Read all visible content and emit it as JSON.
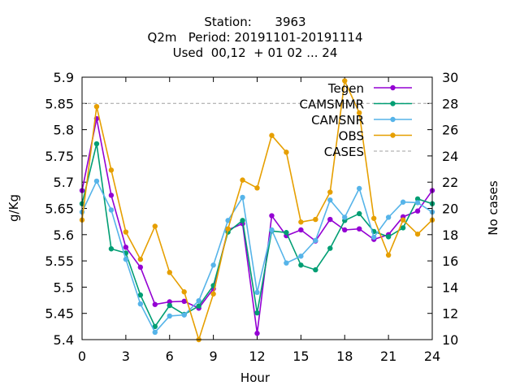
{
  "chart_data": {
    "type": "line",
    "title_lines": [
      "Station:      3963",
      "Q2m   Period: 20191101-20191114",
      "Used  00,12  + 01 02 ... 24"
    ],
    "xlabel": "Hour",
    "ylabel": "g/Kg",
    "y2label": "No cases",
    "xlim": [
      0,
      24
    ],
    "ylim": [
      5.4,
      5.9
    ],
    "y2lim": [
      10,
      30
    ],
    "x_ticks": [
      0,
      3,
      6,
      9,
      12,
      15,
      18,
      21,
      24
    ],
    "y_ticks": [
      "5.4",
      "5.45",
      "5.5",
      "5.55",
      "5.6",
      "5.65",
      "5.7",
      "5.75",
      "5.8",
      "5.85",
      "5.9"
    ],
    "y2_ticks": [
      10,
      12,
      14,
      16,
      18,
      20,
      22,
      24,
      26,
      28,
      30
    ],
    "x": [
      0,
      1,
      2,
      3,
      4,
      5,
      6,
      7,
      8,
      9,
      10,
      11,
      12,
      13,
      14,
      15,
      16,
      17,
      18,
      19,
      20,
      21,
      22,
      23,
      24
    ],
    "series": [
      {
        "name": "Tegen",
        "color": "#9400d3",
        "axis": "y",
        "values": [
          5.684,
          5.821,
          5.675,
          5.576,
          5.538,
          5.467,
          5.472,
          5.473,
          5.46,
          5.497,
          5.609,
          5.621,
          5.412,
          5.636,
          5.598,
          5.609,
          5.588,
          5.629,
          5.609,
          5.611,
          5.591,
          5.6,
          5.634,
          5.645,
          5.684
        ]
      },
      {
        "name": "CAMSMMR",
        "color": "#009e73",
        "axis": "y",
        "values": [
          5.659,
          5.773,
          5.573,
          5.565,
          5.485,
          5.425,
          5.465,
          5.448,
          5.464,
          5.503,
          5.605,
          5.627,
          5.451,
          5.607,
          5.604,
          5.542,
          5.533,
          5.574,
          5.627,
          5.64,
          5.606,
          5.596,
          5.613,
          5.668,
          5.659
        ]
      },
      {
        "name": "CAMSNR",
        "color": "#56b4e9",
        "axis": "y",
        "values": [
          5.643,
          5.702,
          5.647,
          5.553,
          5.468,
          5.414,
          5.445,
          5.447,
          5.474,
          5.542,
          5.627,
          5.671,
          5.49,
          5.609,
          5.546,
          5.559,
          5.589,
          5.666,
          5.633,
          5.688,
          5.595,
          5.633,
          5.662,
          5.661,
          5.643
        ]
      },
      {
        "name": "OBS",
        "color": "#e69f00",
        "axis": "y",
        "values": [
          5.628,
          5.844,
          5.723,
          5.605,
          5.553,
          5.616,
          5.528,
          5.491,
          5.4,
          5.487,
          5.611,
          5.704,
          5.689,
          5.789,
          5.757,
          5.624,
          5.629,
          5.681,
          5.893,
          5.832,
          5.631,
          5.561,
          5.628,
          5.601,
          5.628
        ]
      },
      {
        "name": "CASES",
        "color": "#a0a0a0",
        "axis": "y2",
        "dashed": true,
        "values": [
          28,
          28,
          28,
          28,
          28,
          28,
          28,
          28,
          28,
          28,
          28,
          28,
          28,
          28,
          28,
          28,
          28,
          28,
          28,
          28,
          28,
          28,
          28,
          28,
          28
        ]
      }
    ],
    "legend_position": "top-right",
    "grid": false
  }
}
